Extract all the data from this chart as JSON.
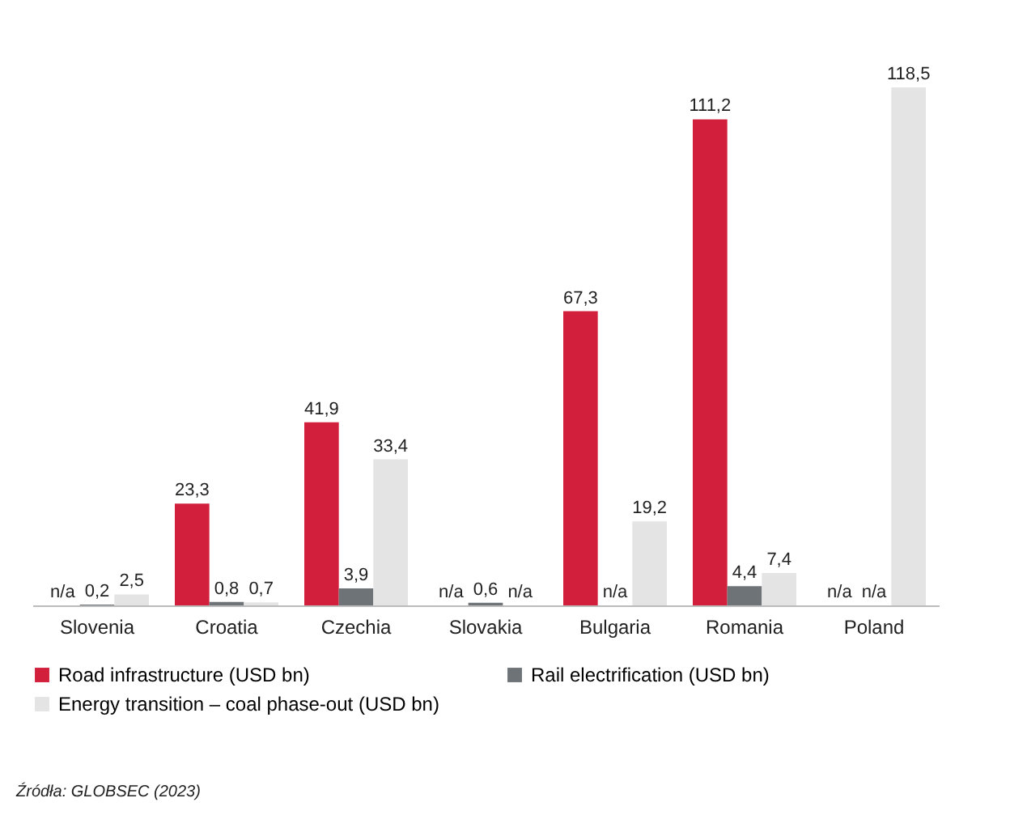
{
  "chart_data": {
    "type": "bar",
    "categories": [
      "Slovenia",
      "Croatia",
      "Czechia",
      "Slovakia",
      "Bulgaria",
      "Romania",
      "Poland"
    ],
    "series": [
      {
        "name": "Road infrastructure (USD bn)",
        "color": "#d21f3b",
        "values": [
          null,
          23.3,
          41.9,
          null,
          67.3,
          111.2,
          null
        ],
        "value_labels": [
          "n/a",
          "23,3",
          "41,9",
          "n/a",
          "67,3",
          "111,2",
          "n/a"
        ]
      },
      {
        "name": "Rail electrification (USD bn)",
        "color": "#6e7378",
        "values": [
          0.2,
          0.8,
          3.9,
          0.6,
          null,
          4.4,
          null
        ],
        "value_labels": [
          "0,2",
          "0,8",
          "3,9",
          "0,6",
          "n/a",
          "4,4",
          "n/a"
        ]
      },
      {
        "name": "Energy transition – coal phase-out (USD bn)",
        "color": "#e4e4e4",
        "values": [
          2.5,
          0.7,
          33.4,
          null,
          19.2,
          7.4,
          118.5
        ],
        "value_labels": [
          "2,5",
          "0,7",
          "33,4",
          "n/a",
          "19,2",
          "7,4",
          "118,5"
        ]
      }
    ],
    "legend": "bottom",
    "annotations": [
      "Źródła: GLOBSEC (2023)"
    ]
  }
}
